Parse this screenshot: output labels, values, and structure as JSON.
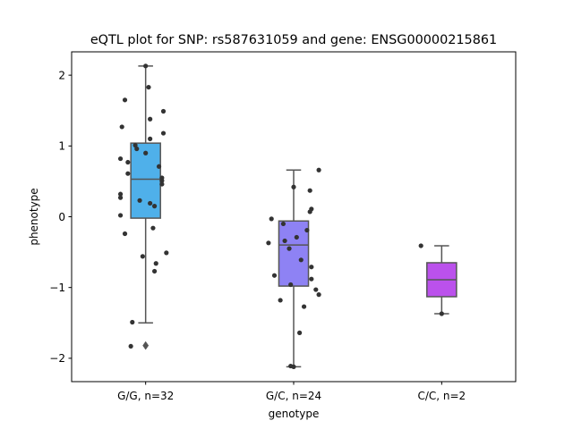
{
  "chart_data": {
    "type": "boxplot",
    "title": "eQTL plot for SNP: rs587631059 and gene: ENSG00000215861",
    "xlabel": "genotype",
    "ylabel": "phenotype",
    "ylim": [
      -2.33,
      2.33
    ],
    "yticks": [
      {
        "value": 2,
        "label": "2"
      },
      {
        "value": 1,
        "label": "1"
      },
      {
        "value": 0,
        "label": "0"
      },
      {
        "value": -1,
        "label": "−1"
      },
      {
        "value": -2,
        "label": "−2"
      }
    ],
    "grid": false,
    "legend": "none",
    "categories": [
      {
        "label": "G/G, n=32",
        "color": "#4fb0ea",
        "q1": -0.02,
        "median": 0.53,
        "q3": 1.04,
        "whisker_low": -1.5,
        "whisker_high": 2.13,
        "outliers": [
          -1.82
        ],
        "points": [
          [
            0.0,
            2.13
          ],
          [
            0.02,
            1.83
          ],
          [
            -0.14,
            1.65
          ],
          [
            0.12,
            1.49
          ],
          [
            0.03,
            1.38
          ],
          [
            -0.16,
            1.27
          ],
          [
            0.12,
            1.18
          ],
          [
            0.03,
            1.1
          ],
          [
            -0.07,
            1.01
          ],
          [
            -0.06,
            0.96
          ],
          [
            0.0,
            0.9
          ],
          [
            -0.17,
            0.82
          ],
          [
            -0.12,
            0.77
          ],
          [
            0.09,
            0.71
          ],
          [
            -0.12,
            0.61
          ],
          [
            0.11,
            0.55
          ],
          [
            0.11,
            0.51
          ],
          [
            0.11,
            0.46
          ],
          [
            -0.17,
            0.32
          ],
          [
            -0.17,
            0.27
          ],
          [
            -0.04,
            0.23
          ],
          [
            0.03,
            0.19
          ],
          [
            0.06,
            0.15
          ],
          [
            -0.17,
            0.02
          ],
          [
            0.05,
            -0.16
          ],
          [
            -0.14,
            -0.24
          ],
          [
            0.14,
            -0.51
          ],
          [
            -0.02,
            -0.56
          ],
          [
            0.07,
            -0.66
          ],
          [
            0.06,
            -0.77
          ],
          [
            -0.09,
            -1.49
          ],
          [
            -0.1,
            -1.83
          ]
        ]
      },
      {
        "label": "G/C, n=24",
        "color": "#8e82f4",
        "q1": -0.98,
        "median": -0.4,
        "q3": -0.06,
        "whisker_low": -2.12,
        "whisker_high": 0.66,
        "outliers": [],
        "points": [
          [
            0.17,
            0.66
          ],
          [
            0.0,
            0.42
          ],
          [
            0.11,
            0.37
          ],
          [
            0.12,
            0.11
          ],
          [
            0.11,
            0.07
          ],
          [
            -0.15,
            -0.03
          ],
          [
            -0.07,
            -0.1
          ],
          [
            0.09,
            -0.19
          ],
          [
            0.02,
            -0.29
          ],
          [
            -0.06,
            -0.34
          ],
          [
            -0.17,
            -0.37
          ],
          [
            -0.03,
            -0.45
          ],
          [
            0.05,
            -0.61
          ],
          [
            0.12,
            -0.71
          ],
          [
            -0.13,
            -0.83
          ],
          [
            0.12,
            -0.88
          ],
          [
            -0.02,
            -0.96
          ],
          [
            0.15,
            -1.03
          ],
          [
            0.17,
            -1.1
          ],
          [
            -0.09,
            -1.18
          ],
          [
            0.07,
            -1.27
          ],
          [
            0.04,
            -1.64
          ],
          [
            -0.02,
            -2.11
          ],
          [
            0.0,
            -2.12
          ]
        ]
      },
      {
        "label": "C/C, n=2",
        "color": "#bb51ec",
        "q1": -1.13,
        "median": -0.89,
        "q3": -0.65,
        "whisker_low": -1.37,
        "whisker_high": -0.41,
        "outliers": [],
        "points": [
          [
            -0.14,
            -0.41
          ],
          [
            0.0,
            -1.37
          ]
        ]
      }
    ]
  }
}
